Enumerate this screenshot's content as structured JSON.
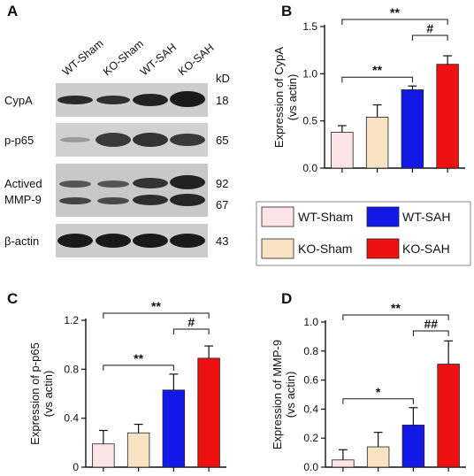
{
  "panel_letters": {
    "a": "A",
    "b": "B",
    "c": "C",
    "d": "D"
  },
  "blot": {
    "kd_label": "kD",
    "lanes": [
      "WT-Sham",
      "KO-Sham",
      "WT-SAH",
      "KO-SAH"
    ],
    "rows": [
      {
        "label": "CypA",
        "kd": [
          "18"
        ]
      },
      {
        "label": "p-p65",
        "kd": [
          "65"
        ]
      },
      {
        "label": "Actived\nMMP-9",
        "kd": [
          "92",
          "67"
        ]
      },
      {
        "label": "β-actin",
        "kd": [
          "43"
        ]
      }
    ],
    "colors": {
      "background": "#c9c9c9",
      "band": "#2a2a2a"
    }
  },
  "legend": {
    "entries": [
      {
        "label": "WT-Sham",
        "color": "#fde4e6"
      },
      {
        "label": "WT-SAH",
        "color": "#1418e6"
      },
      {
        "label": "KO-Sham",
        "color": "#fae2c5"
      },
      {
        "label": "KO-SAH",
        "color": "#ee1111"
      }
    ]
  },
  "chart_data": [
    {
      "panel": "B",
      "type": "bar",
      "ylabel": "Expression of CypA\n(vs actin)",
      "ylim": [
        0,
        1.5
      ],
      "yticks": [
        "0.0",
        "0.5",
        "1.0",
        "1.5"
      ],
      "yticks_values": [
        0,
        0.5,
        1.0,
        1.5
      ],
      "categories": [
        "WT-Sham",
        "KO-Sham",
        "WT-SAH",
        "KO-SAH"
      ],
      "values": [
        0.38,
        0.54,
        0.83,
        1.1
      ],
      "errors": [
        0.07,
        0.13,
        0.04,
        0.09
      ],
      "colors": [
        "#fde4e6",
        "#fae2c5",
        "#1418e6",
        "#ee1111"
      ],
      "significance": [
        {
          "from": 0,
          "to": 2,
          "label": "**"
        },
        {
          "from": 0,
          "to": 3,
          "label": "**"
        },
        {
          "from": 2,
          "to": 3,
          "label": "#"
        }
      ]
    },
    {
      "panel": "C",
      "type": "bar",
      "ylabel": "Expression of p-p65\n(vs actin)",
      "ylim": [
        0,
        1.2
      ],
      "yticks": [
        "0",
        "0.4",
        "0.8",
        "1.2"
      ],
      "yticks_values": [
        0,
        0.4,
        0.8,
        1.2
      ],
      "categories": [
        "WT-Sham",
        "KO-Sham",
        "WT-SAH",
        "KO-SAH"
      ],
      "values": [
        0.19,
        0.28,
        0.63,
        0.89
      ],
      "errors": [
        0.11,
        0.07,
        0.13,
        0.1
      ],
      "colors": [
        "#fde4e6",
        "#fae2c5",
        "#1418e6",
        "#ee1111"
      ],
      "significance": [
        {
          "from": 0,
          "to": 2,
          "label": "**"
        },
        {
          "from": 0,
          "to": 3,
          "label": "**"
        },
        {
          "from": 2,
          "to": 3,
          "label": "#"
        }
      ]
    },
    {
      "panel": "D",
      "type": "bar",
      "ylabel": "Expression of MMP-9\n(vs actin)",
      "ylim": [
        0,
        1.0
      ],
      "yticks": [
        "0.0",
        "0.2",
        "0.4",
        "0.6",
        "0.8",
        "1.0"
      ],
      "yticks_values": [
        0,
        0.2,
        0.4,
        0.6,
        0.8,
        1.0
      ],
      "categories": [
        "WT-Sham",
        "KO-Sham",
        "WT-SAH",
        "KO-SAH"
      ],
      "values": [
        0.05,
        0.14,
        0.29,
        0.71
      ],
      "errors": [
        0.07,
        0.1,
        0.12,
        0.16
      ],
      "colors": [
        "#fde4e6",
        "#fae2c5",
        "#1418e6",
        "#ee1111"
      ],
      "significance": [
        {
          "from": 0,
          "to": 2,
          "label": "*"
        },
        {
          "from": 0,
          "to": 3,
          "label": "**"
        },
        {
          "from": 2,
          "to": 3,
          "label": "##"
        }
      ]
    }
  ]
}
